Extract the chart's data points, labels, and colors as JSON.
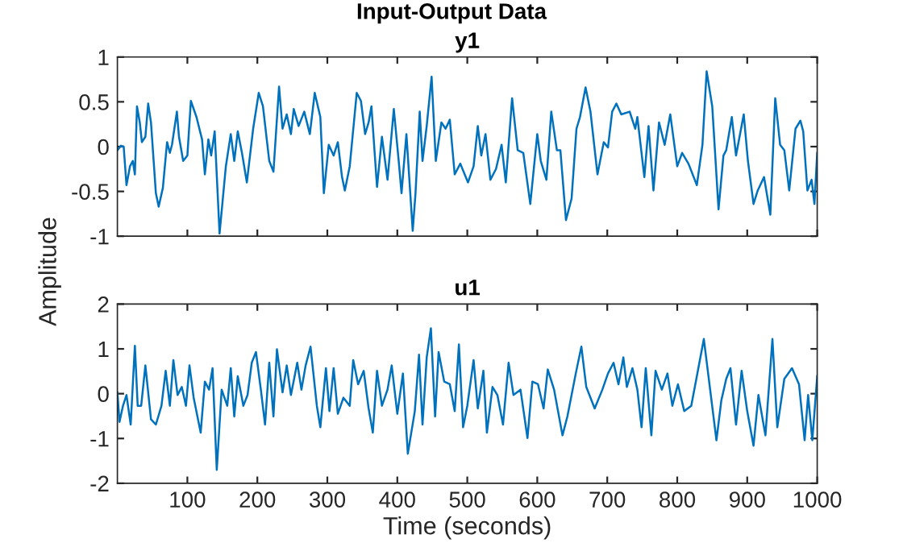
{
  "chart_data": [
    {
      "type": "line",
      "title": "Input-Output Data",
      "subtitle": "y1",
      "ylabel": "Amplitude",
      "xlim": [
        0,
        1000
      ],
      "ylim": [
        -1,
        1
      ],
      "xticks": [
        {
          "value": 100,
          "label": null
        },
        {
          "value": 200,
          "label": null
        },
        {
          "value": 300,
          "label": null
        },
        {
          "value": 400,
          "label": null
        },
        {
          "value": 500,
          "label": null
        },
        {
          "value": 600,
          "label": null
        },
        {
          "value": 700,
          "label": null
        },
        {
          "value": 800,
          "label": null
        },
        {
          "value": 900,
          "label": null
        },
        {
          "value": 1000,
          "label": null
        }
      ],
      "yticks": [
        -1,
        -0.5,
        0,
        0.5,
        1
      ],
      "tick_labels": "y",
      "grid": false,
      "series": [
        {
          "color": "#0072bd",
          "x": [
            0,
            5,
            9,
            13,
            18,
            22,
            25,
            28,
            32,
            35,
            40,
            44,
            48,
            55,
            59,
            65,
            71,
            75,
            78,
            85,
            88,
            94,
            100,
            105,
            113,
            121,
            125,
            130,
            134,
            139,
            146,
            155,
            162,
            167,
            172,
            178,
            185,
            194,
            202,
            208,
            217,
            223,
            231,
            236,
            242,
            248,
            252,
            259,
            267,
            275,
            282,
            290,
            295,
            302,
            309,
            315,
            321,
            325,
            332,
            342,
            348,
            354,
            359,
            363,
            371,
            378,
            386,
            395,
            402,
            406,
            413,
            422,
            426,
            432,
            436,
            442,
            449,
            455,
            463,
            469,
            475,
            482,
            490,
            501,
            509,
            515,
            520,
            526,
            533,
            541,
            549,
            555,
            564,
            572,
            580,
            590,
            600,
            605,
            613,
            620,
            628,
            633,
            641,
            649,
            656,
            661,
            669,
            676,
            686,
            695,
            701,
            707,
            713,
            720,
            732,
            740,
            743,
            753,
            759,
            766,
            774,
            782,
            790,
            800,
            807,
            816,
            828,
            836,
            842,
            850,
            859,
            866,
            870,
            878,
            884,
            895,
            901,
            909,
            915,
            924,
            933,
            940,
            947,
            953,
            960,
            969,
            976,
            980,
            986,
            992,
            996,
            1000
          ],
          "values": [
            -0.04,
            0.01,
            0,
            -0.43,
            -0.22,
            -0.16,
            -0.31,
            0.45,
            0.27,
            0.05,
            0.11,
            0.48,
            0.27,
            -0.52,
            -0.67,
            -0.46,
            0.05,
            -0.07,
            0.02,
            0.39,
            0.11,
            -0.16,
            -0.1,
            0.51,
            0.33,
            0.08,
            -0.31,
            0.08,
            -0.1,
            0.17,
            -0.97,
            -0.22,
            0.14,
            -0.16,
            0.17,
            -0.07,
            -0.4,
            0.2,
            0.6,
            0.45,
            -0.16,
            -0.28,
            0.67,
            0.2,
            0.36,
            0.14,
            0.42,
            0.23,
            0.39,
            0.14,
            0.6,
            0.33,
            -0.52,
            0.02,
            -0.1,
            0.05,
            -0.34,
            -0.49,
            -0.22,
            0.6,
            0.51,
            0.14,
            0.27,
            0.45,
            -0.45,
            0.11,
            -0.37,
            0.42,
            -0.16,
            -0.52,
            0.14,
            -0.94,
            -0.52,
            0.39,
            -0.16,
            0.23,
            0.78,
            -0.16,
            0.27,
            0.2,
            0.3,
            -0.31,
            -0.19,
            -0.4,
            -0.22,
            0.23,
            -0.1,
            0.14,
            -0.37,
            -0.25,
            0.02,
            -0.4,
            0.54,
            -0.04,
            -0.07,
            -0.64,
            0.14,
            -0.16,
            -0.37,
            0.39,
            -0.04,
            -0.04,
            -0.82,
            -0.58,
            0.2,
            0.33,
            0.66,
            0.39,
            -0.31,
            0.05,
            -0.01,
            0.39,
            0.48,
            0.36,
            0.39,
            0.2,
            0.33,
            -0.34,
            0.23,
            -0.49,
            0.27,
            0.02,
            0.36,
            -0.22,
            -0.07,
            -0.19,
            -0.43,
            0.02,
            0.84,
            0.45,
            -0.7,
            -0.1,
            -0.04,
            0.33,
            -0.1,
            0.36,
            -0.16,
            -0.64,
            -0.49,
            -0.34,
            -0.76,
            0.54,
            0.02,
            -0.04,
            -0.49,
            0.2,
            0.29,
            0.17,
            -0.49,
            -0.37,
            -0.64,
            -0.07
          ]
        }
      ]
    },
    {
      "type": "line",
      "subtitle": "u1",
      "xlabel": "Time (seconds)",
      "xlim": [
        0,
        1000
      ],
      "ylim": [
        -2,
        2
      ],
      "xticks": [
        100,
        200,
        300,
        400,
        500,
        600,
        700,
        800,
        900,
        1000
      ],
      "yticks": [
        -2,
        -1,
        0,
        1,
        2
      ],
      "grid": false,
      "series": [
        {
          "color": "#0072bd",
          "x": [
            0,
            3,
            8,
            13,
            19,
            25,
            29,
            34,
            40,
            48,
            55,
            63,
            69,
            75,
            80,
            86,
            92,
            98,
            103,
            109,
            119,
            125,
            131,
            136,
            142,
            149,
            157,
            162,
            167,
            172,
            180,
            186,
            192,
            198,
            205,
            211,
            217,
            223,
            228,
            236,
            242,
            248,
            257,
            263,
            269,
            276,
            285,
            290,
            298,
            303,
            309,
            315,
            323,
            332,
            337,
            344,
            352,
            359,
            365,
            371,
            378,
            386,
            392,
            400,
            408,
            415,
            425,
            431,
            436,
            442,
            448,
            454,
            459,
            467,
            475,
            482,
            488,
            494,
            500,
            509,
            515,
            523,
            528,
            536,
            543,
            551,
            559,
            566,
            576,
            586,
            593,
            601,
            609,
            615,
            624,
            636,
            643,
            655,
            663,
            670,
            682,
            693,
            701,
            709,
            716,
            723,
            728,
            736,
            743,
            749,
            755,
            763,
            769,
            778,
            786,
            793,
            801,
            810,
            820,
            828,
            838,
            847,
            856,
            863,
            870,
            876,
            884,
            892,
            900,
            909,
            916,
            926,
            936,
            943,
            953,
            964,
            974,
            982,
            987,
            993,
            1000
          ],
          "values": [
            0.03,
            -0.63,
            -0.27,
            -0.03,
            -0.69,
            1.07,
            -0.27,
            -0.27,
            0.63,
            -0.57,
            -0.69,
            -0.27,
            0.51,
            -0.27,
            0.75,
            -0.03,
            0.15,
            -0.27,
            0.63,
            -0.09,
            -0.87,
            0.27,
            0.09,
            0.57,
            -1.7,
            0.09,
            -0.27,
            0.57,
            -0.51,
            0.39,
            -0.27,
            -0.03,
            0.69,
            0.93,
            0.09,
            -0.69,
            0.69,
            -0.51,
            0.99,
            0.03,
            0.63,
            -0.03,
            0.69,
            0.09,
            0.63,
            1.05,
            -0.27,
            -0.75,
            0.57,
            -0.39,
            0.57,
            -0.45,
            -0.09,
            -0.27,
            0.75,
            0.21,
            0.51,
            -0.33,
            -0.87,
            0.51,
            -0.27,
            0.09,
            0.63,
            -0.45,
            0.45,
            -1.34,
            -0.39,
            0.87,
            -0.69,
            0.81,
            1.46,
            -0.51,
            0.93,
            0.27,
            0.21,
            -0.39,
            1.1,
            -0.75,
            -0.27,
            0.75,
            -0.33,
            0.51,
            -0.87,
            0.15,
            -0.03,
            -0.69,
            0.69,
            -0.03,
            0.09,
            -0.99,
            0.27,
            0.21,
            -0.33,
            0.54,
            0.09,
            -0.93,
            -0.51,
            0.45,
            1.05,
            0.15,
            -0.33,
            0.09,
            0.45,
            0.69,
            0.21,
            0.81,
            0.15,
            0.57,
            0.09,
            -0.75,
            0.57,
            -0.93,
            0.51,
            0.09,
            0.45,
            -0.27,
            0.21,
            -0.39,
            -0.27,
            0.39,
            1.22,
            0.09,
            -1.04,
            -0.15,
            0.33,
            0.57,
            -0.69,
            0.51,
            -0.39,
            -1.16,
            -0.03,
            -0.93,
            1.22,
            -0.75,
            0.33,
            0.57,
            0.21,
            -1.04,
            -0.03,
            -1.04,
            0.39
          ]
        }
      ]
    }
  ]
}
